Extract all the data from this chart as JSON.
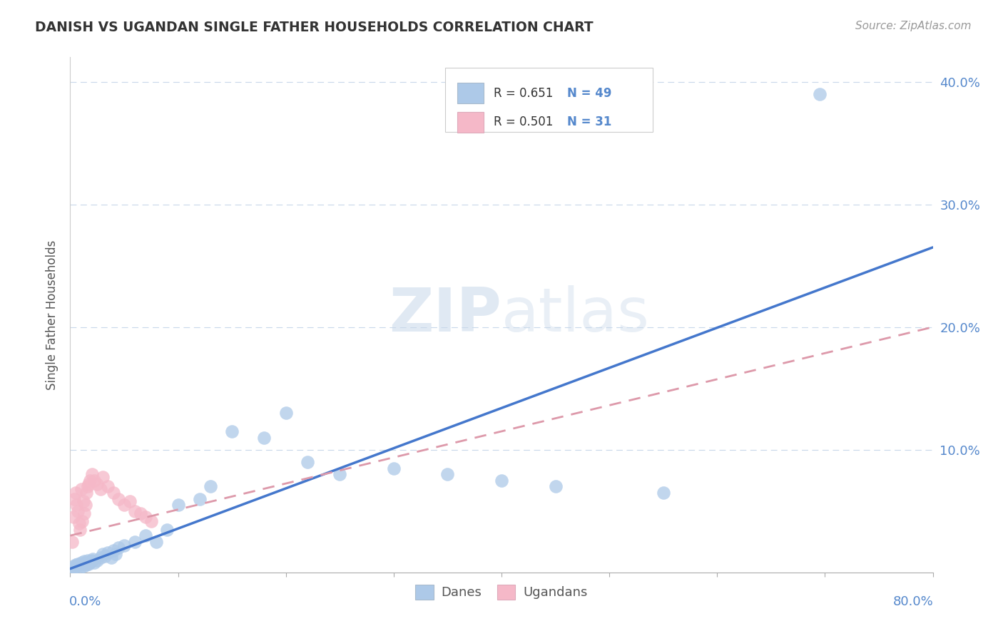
{
  "title": "DANISH VS UGANDAN SINGLE FATHER HOUSEHOLDS CORRELATION CHART",
  "source": "Source: ZipAtlas.com",
  "ylabel": "Single Father Households",
  "ytick_values": [
    0.0,
    0.1,
    0.2,
    0.3,
    0.4
  ],
  "xlim": [
    0.0,
    0.8
  ],
  "ylim": [
    0.0,
    0.42
  ],
  "danes_R": 0.651,
  "danes_N": 49,
  "ugandans_R": 0.501,
  "ugandans_N": 31,
  "danes_color": "#adc9e8",
  "ugandans_color": "#f5b8c8",
  "danes_line_color": "#4477cc",
  "ugandans_line_color": "#dd99aa",
  "background_color": "#ffffff",
  "grid_color": "#c8d8ea",
  "danes_line_x0": 0.0,
  "danes_line_y0": 0.003,
  "danes_line_x1": 0.8,
  "danes_line_y1": 0.265,
  "ugandans_line_x0": 0.0,
  "ugandans_line_y0": 0.03,
  "ugandans_line_x1": 0.8,
  "ugandans_line_y1": 0.2,
  "danes_x": [
    0.002,
    0.003,
    0.004,
    0.005,
    0.006,
    0.007,
    0.008,
    0.009,
    0.01,
    0.011,
    0.012,
    0.013,
    0.014,
    0.015,
    0.016,
    0.017,
    0.018,
    0.019,
    0.02,
    0.021,
    0.022,
    0.025,
    0.028,
    0.03,
    0.032,
    0.035,
    0.038,
    0.04,
    0.042,
    0.045,
    0.05,
    0.06,
    0.07,
    0.08,
    0.09,
    0.1,
    0.12,
    0.13,
    0.15,
    0.18,
    0.2,
    0.22,
    0.25,
    0.3,
    0.35,
    0.4,
    0.45,
    0.55,
    0.695
  ],
  "danes_y": [
    0.003,
    0.005,
    0.004,
    0.006,
    0.005,
    0.007,
    0.006,
    0.004,
    0.008,
    0.007,
    0.005,
    0.009,
    0.008,
    0.006,
    0.01,
    0.007,
    0.008,
    0.009,
    0.01,
    0.011,
    0.008,
    0.01,
    0.012,
    0.015,
    0.013,
    0.016,
    0.012,
    0.018,
    0.015,
    0.02,
    0.022,
    0.025,
    0.03,
    0.025,
    0.035,
    0.055,
    0.06,
    0.07,
    0.115,
    0.11,
    0.13,
    0.09,
    0.08,
    0.085,
    0.08,
    0.075,
    0.07,
    0.065,
    0.39
  ],
  "ugandans_x": [
    0.002,
    0.003,
    0.004,
    0.005,
    0.006,
    0.007,
    0.008,
    0.009,
    0.01,
    0.011,
    0.012,
    0.013,
    0.014,
    0.015,
    0.016,
    0.017,
    0.018,
    0.02,
    0.022,
    0.025,
    0.028,
    0.03,
    0.035,
    0.04,
    0.045,
    0.05,
    0.055,
    0.06,
    0.065,
    0.07,
    0.075
  ],
  "ugandans_y": [
    0.025,
    0.045,
    0.06,
    0.065,
    0.055,
    0.05,
    0.04,
    0.035,
    0.068,
    0.042,
    0.058,
    0.048,
    0.055,
    0.065,
    0.07,
    0.072,
    0.075,
    0.08,
    0.075,
    0.072,
    0.068,
    0.078,
    0.07,
    0.065,
    0.06,
    0.055,
    0.058,
    0.05,
    0.048,
    0.045,
    0.042
  ]
}
